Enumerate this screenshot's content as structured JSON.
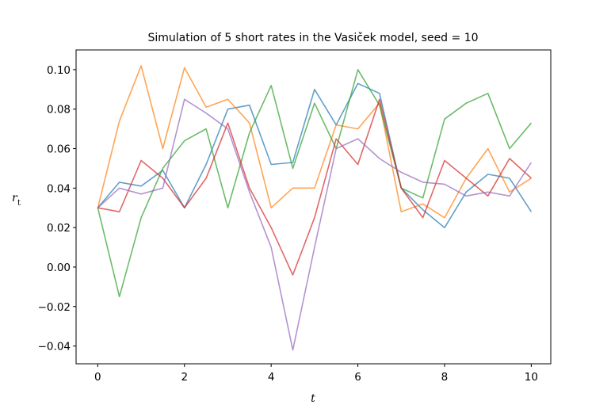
{
  "chart_data": {
    "type": "line",
    "title": "Simulation of 5 short rates in the Vasiček model, seed = 10",
    "xlabel": "t",
    "ylabel_main": "r",
    "ylabel_sub": "t",
    "xlim": [
      -0.5,
      10.45
    ],
    "ylim": [
      -0.049,
      0.11
    ],
    "xticks": [
      0,
      2,
      4,
      6,
      8,
      10
    ],
    "xtick_labels": [
      "0",
      "2",
      "4",
      "6",
      "8",
      "10"
    ],
    "yticks": [
      -0.04,
      -0.02,
      0.0,
      0.02,
      0.04,
      0.06,
      0.08,
      0.1
    ],
    "ytick_labels": [
      "−0.04",
      "−0.02",
      "0.00",
      "0.02",
      "0.04",
      "0.06",
      "0.08",
      "0.10"
    ],
    "grid": false,
    "legend": "none",
    "x": [
      0,
      0.5,
      1,
      1.5,
      2,
      2.5,
      3,
      3.5,
      4,
      4.5,
      5,
      5.5,
      6,
      6.5,
      7,
      7.5,
      8,
      8.5,
      9,
      9.5,
      10
    ],
    "series": [
      {
        "color": "#1f77b4",
        "values": [
          0.03,
          0.043,
          0.041,
          0.049,
          0.03,
          0.052,
          0.08,
          0.082,
          0.052,
          0.053,
          0.09,
          0.072,
          0.093,
          0.088,
          0.04,
          0.029,
          0.02,
          0.038,
          0.047,
          0.045,
          0.028
        ]
      },
      {
        "color": "#ff7f0e",
        "values": [
          0.03,
          0.074,
          0.102,
          0.06,
          0.101,
          0.081,
          0.085,
          0.073,
          0.03,
          0.04,
          0.04,
          0.072,
          0.07,
          0.083,
          0.028,
          0.032,
          0.025,
          0.045,
          0.06,
          0.038,
          0.045
        ]
      },
      {
        "color": "#2ca02c",
        "values": [
          0.03,
          -0.015,
          0.025,
          0.05,
          0.064,
          0.07,
          0.03,
          0.068,
          0.092,
          0.05,
          0.083,
          0.06,
          0.1,
          0.082,
          0.04,
          0.035,
          0.075,
          0.083,
          0.088,
          0.06,
          0.073
        ]
      },
      {
        "color": "#d62728",
        "values": [
          0.03,
          0.028,
          0.054,
          0.045,
          0.03,
          0.045,
          0.073,
          0.04,
          0.02,
          -0.004,
          0.025,
          0.065,
          0.052,
          0.085,
          0.04,
          0.025,
          0.054,
          0.045,
          0.036,
          0.055,
          0.045
        ]
      },
      {
        "color": "#9467bd",
        "values": [
          0.03,
          0.04,
          0.037,
          0.04,
          0.085,
          0.078,
          0.07,
          0.038,
          0.01,
          -0.042,
          0.01,
          0.06,
          0.065,
          0.055,
          0.048,
          0.043,
          0.042,
          0.036,
          0.038,
          0.036,
          0.053
        ]
      }
    ]
  }
}
